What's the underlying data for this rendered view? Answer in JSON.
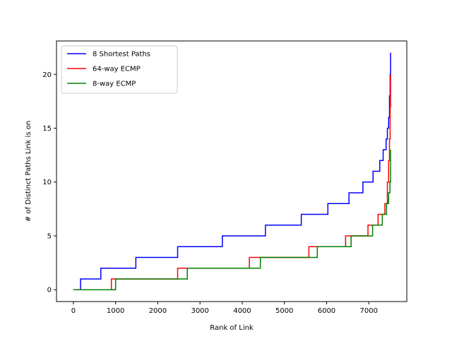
{
  "chart_data": {
    "type": "line",
    "step": "post",
    "title": "",
    "xlabel": "Rank of Link",
    "ylabel": "# of Distinct Paths Link is on",
    "xlim": [
      -400,
      7900
    ],
    "ylim": [
      -1.1,
      23.1
    ],
    "xticks": [
      0,
      1000,
      2000,
      3000,
      4000,
      5000,
      6000,
      7000
    ],
    "yticks": [
      0,
      5,
      10,
      15,
      20
    ],
    "grid": false,
    "legend_position": "top-left",
    "series": [
      {
        "name": "8 Shortest Paths",
        "color": "#0000ff",
        "points": [
          [
            0,
            0
          ],
          [
            170,
            1
          ],
          [
            650,
            2
          ],
          [
            1480,
            3
          ],
          [
            2470,
            4
          ],
          [
            3530,
            5
          ],
          [
            4550,
            6
          ],
          [
            5400,
            7
          ],
          [
            6030,
            8
          ],
          [
            6530,
            9
          ],
          [
            6860,
            10
          ],
          [
            7100,
            11
          ],
          [
            7260,
            12
          ],
          [
            7340,
            13
          ],
          [
            7410,
            14
          ],
          [
            7440,
            15
          ],
          [
            7470,
            16
          ],
          [
            7490,
            18
          ],
          [
            7505,
            20
          ],
          [
            7515,
            22
          ]
        ]
      },
      {
        "name": "64-way ECMP",
        "color": "#ff0000",
        "points": [
          [
            0,
            0
          ],
          [
            900,
            1
          ],
          [
            2470,
            2
          ],
          [
            2700,
            2
          ],
          [
            4170,
            3
          ],
          [
            5580,
            4
          ],
          [
            6450,
            5
          ],
          [
            6980,
            6
          ],
          [
            7220,
            7
          ],
          [
            7380,
            8
          ],
          [
            7440,
            10
          ],
          [
            7470,
            12
          ],
          [
            7490,
            14
          ],
          [
            7505,
            17
          ],
          [
            7515,
            20
          ]
        ]
      },
      {
        "name": "8-way ECMP",
        "color": "#008000",
        "points": [
          [
            0,
            0
          ],
          [
            1000,
            1
          ],
          [
            2700,
            2
          ],
          [
            4430,
            3
          ],
          [
            5780,
            4
          ],
          [
            6580,
            5
          ],
          [
            7090,
            6
          ],
          [
            7320,
            7
          ],
          [
            7420,
            8
          ],
          [
            7470,
            9
          ],
          [
            7500,
            10
          ],
          [
            7515,
            13
          ]
        ]
      }
    ]
  }
}
